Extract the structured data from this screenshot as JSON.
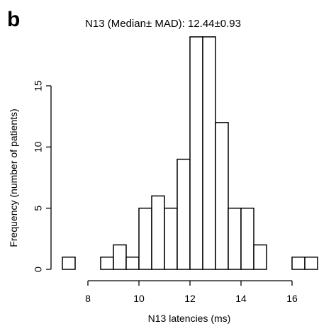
{
  "panel_label": "b",
  "chart_data": {
    "type": "bar",
    "title": "N13 (Median± MAD): 12.44±0.93",
    "xlabel": "N13 latencies (ms)",
    "ylabel": "Frequency (number of patients)",
    "bin_width": 0.5,
    "bins": [
      {
        "start": 7.0,
        "end": 7.5,
        "value": 1
      },
      {
        "start": 7.5,
        "end": 8.0,
        "value": 0
      },
      {
        "start": 8.0,
        "end": 8.5,
        "value": 0
      },
      {
        "start": 8.5,
        "end": 9.0,
        "value": 1
      },
      {
        "start": 9.0,
        "end": 9.5,
        "value": 2
      },
      {
        "start": 9.5,
        "end": 10.0,
        "value": 1
      },
      {
        "start": 10.0,
        "end": 10.5,
        "value": 5
      },
      {
        "start": 10.5,
        "end": 11.0,
        "value": 6
      },
      {
        "start": 11.0,
        "end": 11.5,
        "value": 5
      },
      {
        "start": 11.5,
        "end": 12.0,
        "value": 9
      },
      {
        "start": 12.0,
        "end": 12.5,
        "value": 19
      },
      {
        "start": 12.5,
        "end": 13.0,
        "value": 19
      },
      {
        "start": 13.0,
        "end": 13.5,
        "value": 12
      },
      {
        "start": 13.5,
        "end": 14.0,
        "value": 5
      },
      {
        "start": 14.0,
        "end": 14.5,
        "value": 5
      },
      {
        "start": 14.5,
        "end": 15.0,
        "value": 2
      },
      {
        "start": 15.0,
        "end": 15.5,
        "value": 0
      },
      {
        "start": 15.5,
        "end": 16.0,
        "value": 0
      },
      {
        "start": 16.0,
        "end": 16.5,
        "value": 1
      },
      {
        "start": 16.5,
        "end": 17.0,
        "value": 1
      }
    ],
    "xlim": [
      7,
      17
    ],
    "ylim": [
      0,
      19
    ],
    "x_ticks": [
      8,
      10,
      12,
      14,
      16
    ],
    "x_tick_labels": [
      "8",
      "10",
      "12",
      "14",
      "16"
    ],
    "y_ticks": [
      0,
      5,
      10,
      15
    ],
    "y_tick_labels": [
      "0",
      "5",
      "10",
      "15"
    ],
    "grid": false,
    "bar_fill": "#ffffff",
    "bar_stroke": "#000000"
  }
}
